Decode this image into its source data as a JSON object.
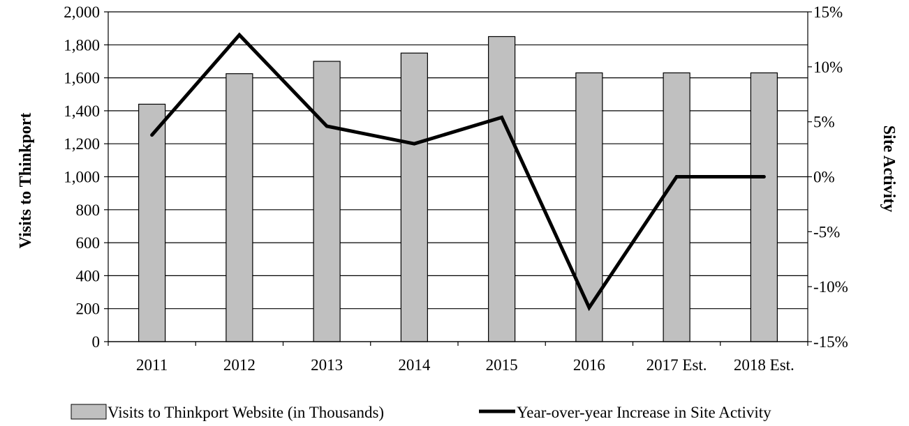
{
  "chart_data": {
    "type": "bar",
    "categories": [
      "2011",
      "2012",
      "2013",
      "2014",
      "2015",
      "2016",
      "2017 Est.",
      "2018 Est."
    ],
    "series": [
      {
        "name": "Visits to Thinkport Website (in Thousands)",
        "type": "bar",
        "axis": "left",
        "values": [
          1440,
          1625,
          1700,
          1750,
          1850,
          1630,
          1630,
          1630
        ]
      },
      {
        "name": "Year-over-year Increase in Site Activity",
        "type": "line",
        "axis": "right",
        "values": [
          3.8,
          12.9,
          4.6,
          3.0,
          5.4,
          -11.9,
          0.0,
          0.0
        ]
      }
    ],
    "ylabel": "Visits to Thinkport",
    "y2label": "Site Activity",
    "ylim": [
      0,
      2000
    ],
    "y2lim": [
      -15,
      15
    ],
    "yticks": [
      "0",
      "200",
      "400",
      "600",
      "800",
      "1,000",
      "1,200",
      "1,400",
      "1,600",
      "1,800",
      "2,000"
    ],
    "y2ticks": [
      "-15%",
      "-10%",
      "-5%",
      "0%",
      "5%",
      "10%",
      "15%"
    ],
    "grid": true,
    "legend_position": "bottom",
    "colors": {
      "bar_fill": "#c0c0c0",
      "bar_stroke": "#000000",
      "line": "#000000",
      "grid": "#000000"
    }
  }
}
